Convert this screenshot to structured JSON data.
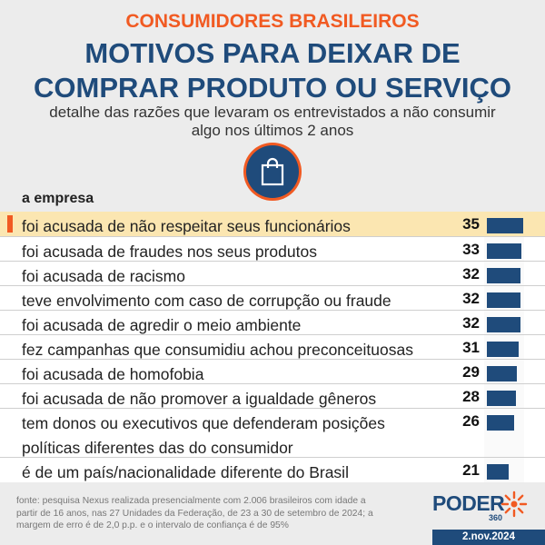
{
  "header": {
    "kicker": "CONSUMIDORES BRASILEIROS",
    "title_line1": "MOTIVOS PARA DEIXAR DE",
    "title_line2": "COMPRAR PRODUTO OU SERVIÇO",
    "subtitle_line1": "detalhe das razões que levaram os entrevistados a não consumir",
    "subtitle_line2": "algo nos últimos 2 anos",
    "icon": "shopping-bag-icon"
  },
  "colors": {
    "accent": "#f15a22",
    "brand": "#1f4b7b",
    "highlight": "#fbe6b1"
  },
  "chart_data": {
    "type": "bar",
    "orientation": "horizontal",
    "group_label": "a empresa",
    "categories": [
      "foi acusada de não respeitar seus funcionários",
      "foi acusada de fraudes nos seus produtos",
      "foi acusada de racismo",
      "teve envolvimento com caso de corrupção ou fraude",
      "foi acusada de agredir o meio ambiente",
      "fez campanhas que consumidiu achou preconceituosas",
      "foi acusada de homofobia",
      "foi acusada de não promover a igualdade gêneros",
      "tem donos ou executivos que defenderam posições políticas diferentes das do consumidor",
      "é de um país/nacionalidade diferente do Brasil"
    ],
    "label_lines": [
      [
        "foi acusada de não respeitar seus funcionários"
      ],
      [
        "foi acusada de fraudes nos seus produtos"
      ],
      [
        "foi acusada de racismo"
      ],
      [
        "teve envolvimento com caso de corrupção ou fraude"
      ],
      [
        "foi acusada de agredir o meio ambiente"
      ],
      [
        "fez campanhas que consumidiu achou preconceituosas"
      ],
      [
        "foi acusada de homofobia"
      ],
      [
        "foi acusada de não promover a igualdade gêneros"
      ],
      [
        "tem donos ou executivos que defenderam posições",
        "políticas diferentes das do consumidor"
      ],
      [
        "é de um país/nacionalidade diferente do Brasil"
      ]
    ],
    "values": [
      35,
      33,
      32,
      32,
      32,
      31,
      29,
      28,
      26,
      21
    ],
    "highlighted_index": 0,
    "unit": "%",
    "xlim": [
      0,
      35
    ]
  },
  "footer": {
    "source_line1": "fonte: pesquisa Nexus realizada presencialmente com 2.006 brasileiros com idade a",
    "source_line2": "partir de 16 anos, nas 27 Unidades da Federação, de 23 a 30 de setembro de 2024; a",
    "source_line3": "margem de erro é de 2,0 p.p. e o intervalo de confiança é de 95%",
    "logo_text": "PODER",
    "logo_sub": "360",
    "date": "2.nov.2024"
  }
}
